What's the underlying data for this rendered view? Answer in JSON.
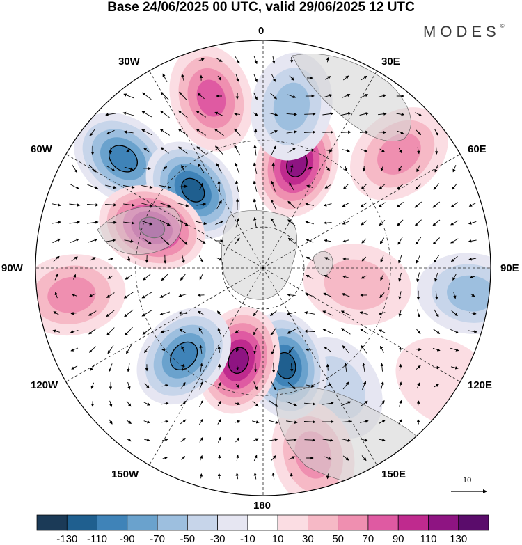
{
  "title": "Base 24/06/2025 00 UTC, valid 29/06/2025 12 UTC",
  "brand": "MODES",
  "brand_mark": "©",
  "map": {
    "projection": "north-polar-stereographic",
    "longitude_labels": {
      "lon_0": "0",
      "lon_30e": "30E",
      "lon_60e": "60E",
      "lon_90e": "90E",
      "lon_120e": "120E",
      "lon_150e": "150E",
      "lon_180": "180",
      "lon_150w": "150W",
      "lon_120w": "120W",
      "lon_90w": "90W",
      "lon_60w": "60W",
      "lon_30w": "30W"
    },
    "reference_vector_label": "10",
    "anomaly_cells": [
      {
        "lon": -17,
        "dist": 0.78,
        "value": 80
      },
      {
        "lon": -52,
        "dist": 0.78,
        "value": -110
      },
      {
        "lon": -42,
        "dist": 0.46,
        "value": -130
      },
      {
        "lon": 18,
        "dist": 0.48,
        "value": 120
      },
      {
        "lon": 10,
        "dist": 0.72,
        "value": -60
      },
      {
        "lon": 50,
        "dist": 0.78,
        "value": 60
      },
      {
        "lon": 97,
        "dist": 0.92,
        "value": -70
      },
      {
        "lon": 122,
        "dist": 0.95,
        "value": 30
      },
      {
        "lon": 100,
        "dist": 0.42,
        "value": 40
      },
      {
        "lon": 148,
        "dist": 0.62,
        "value": -40
      },
      {
        "lon": 165,
        "dist": 0.85,
        "value": 70
      },
      {
        "lon": 167,
        "dist": 0.44,
        "value": -120
      },
      {
        "lon": -165,
        "dist": 0.42,
        "value": 120
      },
      {
        "lon": -138,
        "dist": 0.52,
        "value": -100
      },
      {
        "lon": -98,
        "dist": 0.85,
        "value": 60
      },
      {
        "lon": -70,
        "dist": 0.52,
        "value": 120
      }
    ]
  },
  "colorbar": {
    "ticks": [
      "-130",
      "-110",
      "-90",
      "-70",
      "-50",
      "-30",
      "-10",
      "10",
      "30",
      "50",
      "70",
      "90",
      "110",
      "130"
    ],
    "colors": [
      "#1b3a57",
      "#1f5f8f",
      "#3f83b8",
      "#6aa2cd",
      "#9dbfdf",
      "#c7d5ea",
      "#e6e6f2",
      "#ffffff",
      "#fbdde3",
      "#f6b9c6",
      "#ef8fb0",
      "#df5aa2",
      "#bf2a8e",
      "#8e1482",
      "#5a0c6b"
    ]
  }
}
